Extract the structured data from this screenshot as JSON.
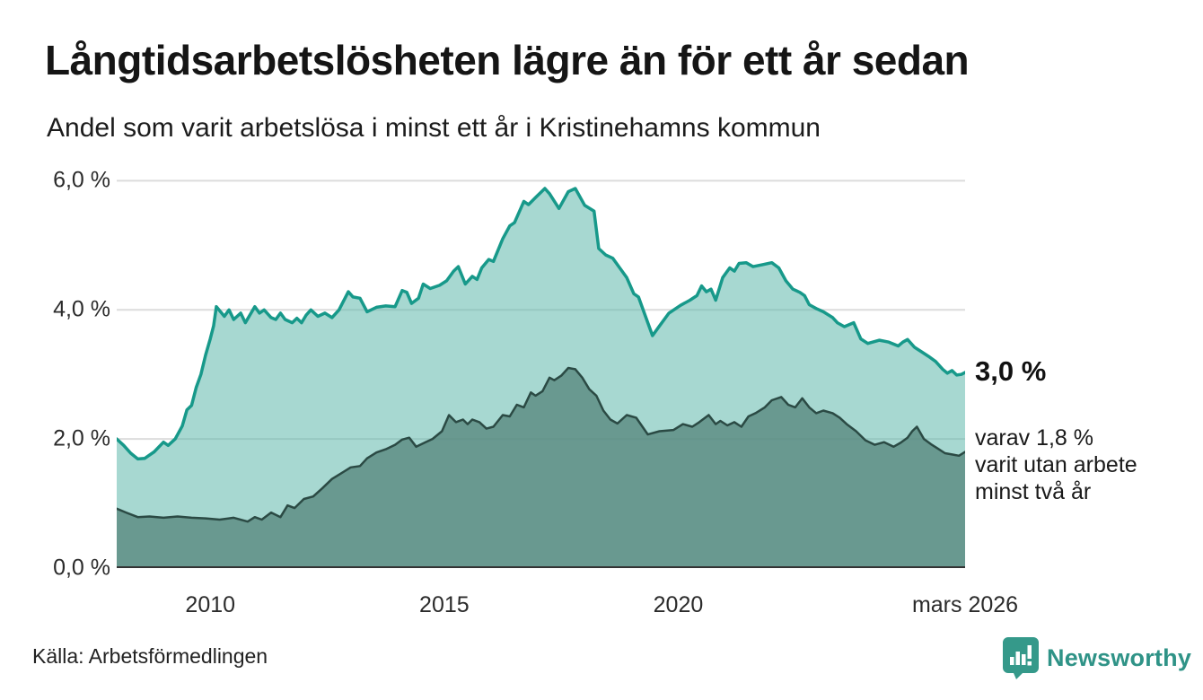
{
  "header": {
    "title": "Långtidsarbetslösheten lägre än för ett år sedan",
    "subtitle": "Andel som varit arbetslösa i minst ett år i Kristinehamns kommun"
  },
  "chart_data": {
    "type": "area",
    "title": "Långtidsarbetslösheten lägre än för ett år sedan",
    "subtitle": "Andel som varit arbetslösa i minst ett år i Kristinehamns kommun",
    "unit": "%",
    "grid": true,
    "grid_color": "#dcdcdc",
    "axis_color": "#333333",
    "x_range": [
      2008.0,
      2026.13
    ],
    "y_range": [
      0,
      6.2
    ],
    "x_ticks": [
      {
        "label": "2010",
        "year": 2010
      },
      {
        "label": "2015",
        "year": 2015
      },
      {
        "label": "2020",
        "year": 2020
      },
      {
        "label": "mars 2026",
        "year": 2026.13
      }
    ],
    "y_ticks": [
      {
        "label": "0,0 %",
        "value": 0
      },
      {
        "label": "2,0 %",
        "value": 2
      },
      {
        "label": "4,0 %",
        "value": 4
      },
      {
        "label": "6,0 %",
        "value": 6
      }
    ],
    "series": [
      {
        "id": "arbetslosa-minst-ett-ar",
        "name": "Andel arbetslösa i minst ett år",
        "color": "#17998a",
        "fill": "rgba(95,184,171,0.55)",
        "line_width": 3.5,
        "end_value": 3.0,
        "points": [
          [
            2008.0,
            2.0
          ],
          [
            2008.15,
            1.9
          ],
          [
            2008.3,
            1.78
          ],
          [
            2008.45,
            1.69
          ],
          [
            2008.6,
            1.7
          ],
          [
            2008.8,
            1.8
          ],
          [
            2009.0,
            1.95
          ],
          [
            2009.1,
            1.9
          ],
          [
            2009.25,
            2.0
          ],
          [
            2009.4,
            2.2
          ],
          [
            2009.5,
            2.45
          ],
          [
            2009.6,
            2.52
          ],
          [
            2009.7,
            2.8
          ],
          [
            2009.8,
            3.0
          ],
          [
            2009.9,
            3.3
          ],
          [
            2010.0,
            3.55
          ],
          [
            2010.07,
            3.75
          ],
          [
            2010.13,
            4.05
          ],
          [
            2010.3,
            3.9
          ],
          [
            2010.4,
            4.0
          ],
          [
            2010.5,
            3.85
          ],
          [
            2010.65,
            3.95
          ],
          [
            2010.75,
            3.8
          ],
          [
            2010.95,
            4.05
          ],
          [
            2011.05,
            3.95
          ],
          [
            2011.15,
            4.0
          ],
          [
            2011.3,
            3.88
          ],
          [
            2011.4,
            3.85
          ],
          [
            2011.5,
            3.95
          ],
          [
            2011.6,
            3.85
          ],
          [
            2011.75,
            3.8
          ],
          [
            2011.85,
            3.87
          ],
          [
            2011.95,
            3.8
          ],
          [
            2012.05,
            3.92
          ],
          [
            2012.15,
            4.0
          ],
          [
            2012.3,
            3.9
          ],
          [
            2012.45,
            3.95
          ],
          [
            2012.6,
            3.88
          ],
          [
            2012.75,
            4.0
          ],
          [
            2012.95,
            4.28
          ],
          [
            2013.05,
            4.2
          ],
          [
            2013.2,
            4.18
          ],
          [
            2013.35,
            3.97
          ],
          [
            2013.55,
            4.04
          ],
          [
            2013.75,
            4.06
          ],
          [
            2013.95,
            4.05
          ],
          [
            2014.1,
            4.3
          ],
          [
            2014.2,
            4.27
          ],
          [
            2014.3,
            4.1
          ],
          [
            2014.45,
            4.18
          ],
          [
            2014.55,
            4.4
          ],
          [
            2014.7,
            4.33
          ],
          [
            2014.9,
            4.38
          ],
          [
            2015.05,
            4.45
          ],
          [
            2015.2,
            4.6
          ],
          [
            2015.3,
            4.67
          ],
          [
            2015.45,
            4.4
          ],
          [
            2015.6,
            4.52
          ],
          [
            2015.7,
            4.47
          ],
          [
            2015.8,
            4.65
          ],
          [
            2015.95,
            4.78
          ],
          [
            2016.05,
            4.75
          ],
          [
            2016.25,
            5.1
          ],
          [
            2016.4,
            5.3
          ],
          [
            2016.5,
            5.35
          ],
          [
            2016.7,
            5.68
          ],
          [
            2016.8,
            5.63
          ],
          [
            2016.95,
            5.74
          ],
          [
            2017.15,
            5.88
          ],
          [
            2017.25,
            5.8
          ],
          [
            2017.45,
            5.57
          ],
          [
            2017.65,
            5.83
          ],
          [
            2017.8,
            5.88
          ],
          [
            2018.0,
            5.62
          ],
          [
            2018.2,
            5.53
          ],
          [
            2018.3,
            4.95
          ],
          [
            2018.45,
            4.85
          ],
          [
            2018.6,
            4.8
          ],
          [
            2018.75,
            4.65
          ],
          [
            2018.9,
            4.5
          ],
          [
            2019.05,
            4.25
          ],
          [
            2019.15,
            4.2
          ],
          [
            2019.3,
            3.9
          ],
          [
            2019.45,
            3.6
          ],
          [
            2019.6,
            3.75
          ],
          [
            2019.8,
            3.95
          ],
          [
            2020.05,
            4.07
          ],
          [
            2020.25,
            4.15
          ],
          [
            2020.4,
            4.22
          ],
          [
            2020.5,
            4.37
          ],
          [
            2020.6,
            4.28
          ],
          [
            2020.7,
            4.32
          ],
          [
            2020.8,
            4.15
          ],
          [
            2020.95,
            4.5
          ],
          [
            2021.1,
            4.65
          ],
          [
            2021.2,
            4.6
          ],
          [
            2021.3,
            4.72
          ],
          [
            2021.45,
            4.73
          ],
          [
            2021.6,
            4.67
          ],
          [
            2021.8,
            4.7
          ],
          [
            2022.0,
            4.73
          ],
          [
            2022.15,
            4.65
          ],
          [
            2022.3,
            4.45
          ],
          [
            2022.45,
            4.32
          ],
          [
            2022.6,
            4.27
          ],
          [
            2022.7,
            4.22
          ],
          [
            2022.8,
            4.08
          ],
          [
            2022.95,
            4.02
          ],
          [
            2023.1,
            3.97
          ],
          [
            2023.3,
            3.88
          ],
          [
            2023.4,
            3.8
          ],
          [
            2023.55,
            3.74
          ],
          [
            2023.75,
            3.8
          ],
          [
            2023.9,
            3.55
          ],
          [
            2024.05,
            3.48
          ],
          [
            2024.3,
            3.53
          ],
          [
            2024.5,
            3.5
          ],
          [
            2024.7,
            3.44
          ],
          [
            2024.8,
            3.5
          ],
          [
            2024.9,
            3.54
          ],
          [
            2025.05,
            3.42
          ],
          [
            2025.2,
            3.35
          ],
          [
            2025.35,
            3.28
          ],
          [
            2025.5,
            3.2
          ],
          [
            2025.65,
            3.08
          ],
          [
            2025.75,
            3.02
          ],
          [
            2025.85,
            3.06
          ],
          [
            2025.95,
            2.99
          ],
          [
            2026.05,
            3.0
          ],
          [
            2026.13,
            3.03
          ]
        ]
      },
      {
        "id": "arbetslosa-minst-tva-ar",
        "name": "Andel som varit utan arbete minst två år",
        "color": "#2b4a44",
        "fill": "rgba(87,134,125,0.78)",
        "line_width": 2.5,
        "end_value": 1.8,
        "points": [
          [
            2008.0,
            0.92
          ],
          [
            2008.2,
            0.86
          ],
          [
            2008.45,
            0.79
          ],
          [
            2008.7,
            0.8
          ],
          [
            2009.0,
            0.78
          ],
          [
            2009.3,
            0.8
          ],
          [
            2009.6,
            0.78
          ],
          [
            2009.9,
            0.77
          ],
          [
            2010.2,
            0.75
          ],
          [
            2010.5,
            0.78
          ],
          [
            2010.8,
            0.72
          ],
          [
            2010.95,
            0.79
          ],
          [
            2011.1,
            0.75
          ],
          [
            2011.3,
            0.86
          ],
          [
            2011.5,
            0.79
          ],
          [
            2011.65,
            0.97
          ],
          [
            2011.8,
            0.93
          ],
          [
            2012.0,
            1.07
          ],
          [
            2012.2,
            1.11
          ],
          [
            2012.4,
            1.24
          ],
          [
            2012.6,
            1.38
          ],
          [
            2012.8,
            1.47
          ],
          [
            2013.0,
            1.56
          ],
          [
            2013.2,
            1.58
          ],
          [
            2013.35,
            1.7
          ],
          [
            2013.55,
            1.79
          ],
          [
            2013.75,
            1.84
          ],
          [
            2013.95,
            1.91
          ],
          [
            2014.1,
            1.99
          ],
          [
            2014.25,
            2.02
          ],
          [
            2014.4,
            1.88
          ],
          [
            2014.6,
            1.95
          ],
          [
            2014.75,
            2.0
          ],
          [
            2014.95,
            2.12
          ],
          [
            2015.1,
            2.37
          ],
          [
            2015.25,
            2.26
          ],
          [
            2015.4,
            2.3
          ],
          [
            2015.5,
            2.23
          ],
          [
            2015.6,
            2.3
          ],
          [
            2015.75,
            2.26
          ],
          [
            2015.9,
            2.16
          ],
          [
            2016.05,
            2.19
          ],
          [
            2016.25,
            2.37
          ],
          [
            2016.4,
            2.35
          ],
          [
            2016.55,
            2.53
          ],
          [
            2016.7,
            2.49
          ],
          [
            2016.85,
            2.72
          ],
          [
            2016.95,
            2.67
          ],
          [
            2017.1,
            2.74
          ],
          [
            2017.25,
            2.95
          ],
          [
            2017.35,
            2.91
          ],
          [
            2017.5,
            2.98
          ],
          [
            2017.65,
            3.1
          ],
          [
            2017.8,
            3.08
          ],
          [
            2017.95,
            2.95
          ],
          [
            2018.1,
            2.77
          ],
          [
            2018.25,
            2.67
          ],
          [
            2018.4,
            2.44
          ],
          [
            2018.55,
            2.3
          ],
          [
            2018.7,
            2.24
          ],
          [
            2018.9,
            2.37
          ],
          [
            2019.1,
            2.33
          ],
          [
            2019.35,
            2.07
          ],
          [
            2019.6,
            2.12
          ],
          [
            2019.9,
            2.14
          ],
          [
            2020.1,
            2.23
          ],
          [
            2020.3,
            2.19
          ],
          [
            2020.45,
            2.26
          ],
          [
            2020.65,
            2.37
          ],
          [
            2020.8,
            2.23
          ],
          [
            2020.9,
            2.28
          ],
          [
            2021.05,
            2.21
          ],
          [
            2021.2,
            2.26
          ],
          [
            2021.35,
            2.19
          ],
          [
            2021.5,
            2.35
          ],
          [
            2021.65,
            2.4
          ],
          [
            2021.85,
            2.49
          ],
          [
            2022.0,
            2.6
          ],
          [
            2022.2,
            2.65
          ],
          [
            2022.35,
            2.53
          ],
          [
            2022.5,
            2.49
          ],
          [
            2022.65,
            2.63
          ],
          [
            2022.8,
            2.49
          ],
          [
            2022.95,
            2.4
          ],
          [
            2023.1,
            2.44
          ],
          [
            2023.3,
            2.4
          ],
          [
            2023.45,
            2.33
          ],
          [
            2023.6,
            2.23
          ],
          [
            2023.8,
            2.12
          ],
          [
            2024.0,
            1.98
          ],
          [
            2024.2,
            1.91
          ],
          [
            2024.4,
            1.95
          ],
          [
            2024.6,
            1.88
          ],
          [
            2024.75,
            1.94
          ],
          [
            2024.9,
            2.02
          ],
          [
            2025.0,
            2.12
          ],
          [
            2025.1,
            2.19
          ],
          [
            2025.25,
            2.0
          ],
          [
            2025.4,
            1.92
          ],
          [
            2025.55,
            1.85
          ],
          [
            2025.7,
            1.78
          ],
          [
            2025.85,
            1.76
          ],
          [
            2026.0,
            1.74
          ],
          [
            2026.13,
            1.8
          ]
        ]
      }
    ],
    "annotations": {
      "end_value_label": "3,0 %",
      "sub_label_lines": [
        "varav 1,8 %",
        "varit utan arbete",
        "minst två år"
      ]
    }
  },
  "footer": {
    "source": "Källa: Arbetsförmedlingen",
    "logo_text": "Newsworthy",
    "logo_color": "#35998a"
  }
}
